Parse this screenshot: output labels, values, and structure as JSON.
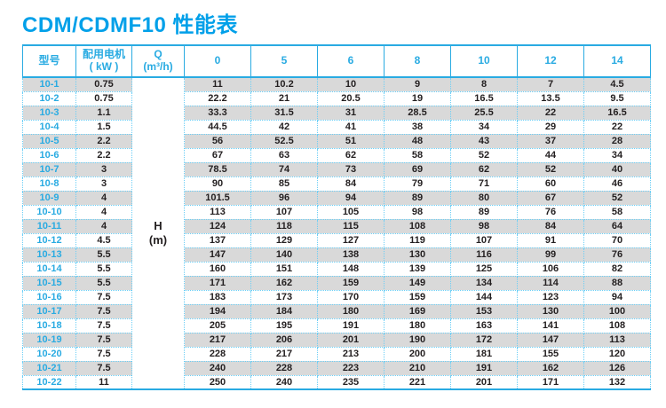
{
  "title": "CDM/CDMF10 性能表",
  "colors": {
    "title": "#00a0e9",
    "accent": "#29abe2",
    "dotted_grid": "#6dcff6",
    "row_stripe": "#d9d9d9",
    "body_text": "#231f20"
  },
  "table": {
    "header": {
      "model": "型号",
      "motor_line1": "配用电机",
      "motor_line2": "( kW )",
      "flow_symbol": "Q",
      "flow_unit": "(m³/h)",
      "flow_columns": [
        "0",
        "5",
        "6",
        "8",
        "10",
        "12",
        "14"
      ]
    },
    "head_unit": {
      "line1": "H",
      "line2": "(m)"
    },
    "rows": [
      {
        "model": "10-1",
        "kw": "0.75",
        "values": [
          "11",
          "10.2",
          "10",
          "9",
          "8",
          "7",
          "4.5"
        ]
      },
      {
        "model": "10-2",
        "kw": "0.75",
        "values": [
          "22.2",
          "21",
          "20.5",
          "19",
          "16.5",
          "13.5",
          "9.5"
        ]
      },
      {
        "model": "10-3",
        "kw": "1.1",
        "values": [
          "33.3",
          "31.5",
          "31",
          "28.5",
          "25.5",
          "22",
          "16.5"
        ]
      },
      {
        "model": "10-4",
        "kw": "1.5",
        "values": [
          "44.5",
          "42",
          "41",
          "38",
          "34",
          "29",
          "22"
        ]
      },
      {
        "model": "10-5",
        "kw": "2.2",
        "values": [
          "56",
          "52.5",
          "51",
          "48",
          "43",
          "37",
          "28"
        ]
      },
      {
        "model": "10-6",
        "kw": "2.2",
        "values": [
          "67",
          "63",
          "62",
          "58",
          "52",
          "44",
          "34"
        ]
      },
      {
        "model": "10-7",
        "kw": "3",
        "values": [
          "78.5",
          "74",
          "73",
          "69",
          "62",
          "52",
          "40"
        ]
      },
      {
        "model": "10-8",
        "kw": "3",
        "values": [
          "90",
          "85",
          "84",
          "79",
          "71",
          "60",
          "46"
        ]
      },
      {
        "model": "10-9",
        "kw": "4",
        "values": [
          "101.5",
          "96",
          "94",
          "89",
          "80",
          "67",
          "52"
        ]
      },
      {
        "model": "10-10",
        "kw": "4",
        "values": [
          "113",
          "107",
          "105",
          "98",
          "89",
          "76",
          "58"
        ]
      },
      {
        "model": "10-11",
        "kw": "4",
        "values": [
          "124",
          "118",
          "115",
          "108",
          "98",
          "84",
          "64"
        ]
      },
      {
        "model": "10-12",
        "kw": "4.5",
        "values": [
          "137",
          "129",
          "127",
          "119",
          "107",
          "91",
          "70"
        ]
      },
      {
        "model": "10-13",
        "kw": "5.5",
        "values": [
          "147",
          "140",
          "138",
          "130",
          "116",
          "99",
          "76"
        ]
      },
      {
        "model": "10-14",
        "kw": "5.5",
        "values": [
          "160",
          "151",
          "148",
          "139",
          "125",
          "106",
          "82"
        ]
      },
      {
        "model": "10-15",
        "kw": "5.5",
        "values": [
          "171",
          "162",
          "159",
          "149",
          "134",
          "114",
          "88"
        ]
      },
      {
        "model": "10-16",
        "kw": "7.5",
        "values": [
          "183",
          "173",
          "170",
          "159",
          "144",
          "123",
          "94"
        ]
      },
      {
        "model": "10-17",
        "kw": "7.5",
        "values": [
          "194",
          "184",
          "180",
          "169",
          "153",
          "130",
          "100"
        ]
      },
      {
        "model": "10-18",
        "kw": "7.5",
        "values": [
          "205",
          "195",
          "191",
          "180",
          "163",
          "141",
          "108"
        ]
      },
      {
        "model": "10-19",
        "kw": "7.5",
        "values": [
          "217",
          "206",
          "201",
          "190",
          "172",
          "147",
          "113"
        ]
      },
      {
        "model": "10-20",
        "kw": "7.5",
        "values": [
          "228",
          "217",
          "213",
          "200",
          "181",
          "155",
          "120"
        ]
      },
      {
        "model": "10-21",
        "kw": "7.5",
        "values": [
          "240",
          "228",
          "223",
          "210",
          "191",
          "162",
          "126"
        ]
      },
      {
        "model": "10-22",
        "kw": "11",
        "values": [
          "250",
          "240",
          "235",
          "221",
          "201",
          "171",
          "132"
        ]
      }
    ]
  }
}
